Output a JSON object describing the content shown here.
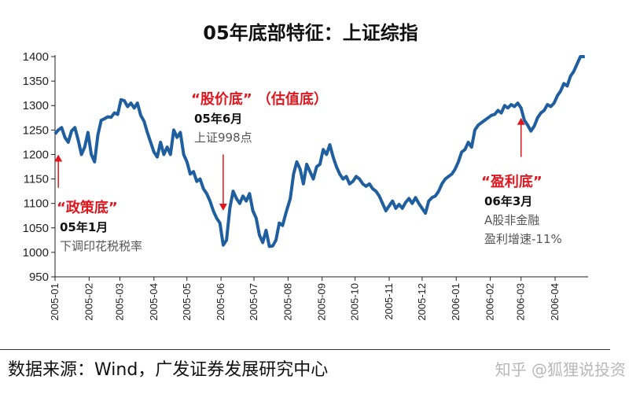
{
  "chart_data": {
    "type": "line",
    "title": "05年底部特征：上证综指",
    "ylim": [
      950,
      1400
    ],
    "yticks": [
      950,
      1000,
      1050,
      1100,
      1150,
      1200,
      1250,
      1300,
      1350,
      1400
    ],
    "xlim": [
      "2005-01-01",
      "2006-05-01"
    ],
    "xticks": [
      "2005-01",
      "2005-02",
      "2005-03",
      "2005-04",
      "2005-05",
      "2005-06",
      "2005-07",
      "2005-08",
      "2005-09",
      "2005-10",
      "2005-11",
      "2005-12",
      "2006-01",
      "2006-02",
      "2006-03",
      "2006-04"
    ],
    "grid": false,
    "series": [
      {
        "color": "#1f5f9f",
        "points": [
          [
            "2005-01-01",
            1242
          ],
          [
            "2005-01-04",
            1250
          ],
          [
            "2005-01-07",
            1255
          ],
          [
            "2005-01-10",
            1235
          ],
          [
            "2005-01-13",
            1225
          ],
          [
            "2005-01-16",
            1248
          ],
          [
            "2005-01-19",
            1255
          ],
          [
            "2005-01-22",
            1230
          ],
          [
            "2005-01-25",
            1200
          ],
          [
            "2005-01-28",
            1215
          ],
          [
            "2005-01-31",
            1245
          ],
          [
            "2005-02-03",
            1200
          ],
          [
            "2005-02-06",
            1185
          ],
          [
            "2005-02-09",
            1240
          ],
          [
            "2005-02-12",
            1270
          ],
          [
            "2005-02-15",
            1273
          ],
          [
            "2005-02-18",
            1277
          ],
          [
            "2005-02-21",
            1276
          ],
          [
            "2005-02-24",
            1285
          ],
          [
            "2005-02-27",
            1282
          ],
          [
            "2005-03-02",
            1312
          ],
          [
            "2005-03-05",
            1310
          ],
          [
            "2005-03-08",
            1298
          ],
          [
            "2005-03-11",
            1305
          ],
          [
            "2005-03-14",
            1295
          ],
          [
            "2005-03-17",
            1305
          ],
          [
            "2005-03-20",
            1280
          ],
          [
            "2005-03-23",
            1268
          ],
          [
            "2005-03-26",
            1245
          ],
          [
            "2005-03-29",
            1225
          ],
          [
            "2005-04-01",
            1205
          ],
          [
            "2005-04-04",
            1195
          ],
          [
            "2005-04-07",
            1225
          ],
          [
            "2005-04-10",
            1200
          ],
          [
            "2005-04-13",
            1215
          ],
          [
            "2005-04-16",
            1200
          ],
          [
            "2005-04-19",
            1250
          ],
          [
            "2005-04-22",
            1235
          ],
          [
            "2005-04-25",
            1245
          ],
          [
            "2005-04-28",
            1200
          ],
          [
            "2005-05-01",
            1185
          ],
          [
            "2005-05-04",
            1160
          ],
          [
            "2005-05-07",
            1165
          ],
          [
            "2005-05-10",
            1145
          ],
          [
            "2005-05-13",
            1150
          ],
          [
            "2005-05-16",
            1130
          ],
          [
            "2005-05-19",
            1120
          ],
          [
            "2005-05-22",
            1105
          ],
          [
            "2005-05-25",
            1085
          ],
          [
            "2005-05-28",
            1070
          ],
          [
            "2005-05-31",
            1060
          ],
          [
            "2005-06-03",
            1015
          ],
          [
            "2005-06-06",
            1025
          ],
          [
            "2005-06-09",
            1090
          ],
          [
            "2005-06-12",
            1125
          ],
          [
            "2005-06-15",
            1110
          ],
          [
            "2005-06-18",
            1100
          ],
          [
            "2005-06-21",
            1115
          ],
          [
            "2005-06-24",
            1105
          ],
          [
            "2005-06-27",
            1120
          ],
          [
            "2005-06-30",
            1085
          ],
          [
            "2005-07-03",
            1070
          ],
          [
            "2005-07-06",
            1035
          ],
          [
            "2005-07-09",
            1020
          ],
          [
            "2005-07-12",
            1045
          ],
          [
            "2005-07-15",
            1012
          ],
          [
            "2005-07-18",
            1013
          ],
          [
            "2005-07-21",
            1025
          ],
          [
            "2005-07-24",
            1060
          ],
          [
            "2005-07-27",
            1055
          ],
          [
            "2005-07-30",
            1080
          ],
          [
            "2005-08-03",
            1110
          ],
          [
            "2005-08-06",
            1160
          ],
          [
            "2005-08-09",
            1185
          ],
          [
            "2005-08-12",
            1170
          ],
          [
            "2005-08-15",
            1140
          ],
          [
            "2005-08-18",
            1180
          ],
          [
            "2005-08-21",
            1165
          ],
          [
            "2005-08-24",
            1150
          ],
          [
            "2005-08-27",
            1175
          ],
          [
            "2005-08-30",
            1180
          ],
          [
            "2005-09-02",
            1210
          ],
          [
            "2005-09-05",
            1200
          ],
          [
            "2005-09-08",
            1220
          ],
          [
            "2005-09-11",
            1195
          ],
          [
            "2005-09-14",
            1175
          ],
          [
            "2005-09-17",
            1160
          ],
          [
            "2005-09-20",
            1150
          ],
          [
            "2005-09-23",
            1155
          ],
          [
            "2005-09-26",
            1140
          ],
          [
            "2005-09-29",
            1145
          ],
          [
            "2005-10-02",
            1155
          ],
          [
            "2005-10-05",
            1150
          ],
          [
            "2005-10-08",
            1140
          ],
          [
            "2005-10-11",
            1135
          ],
          [
            "2005-10-14",
            1140
          ],
          [
            "2005-10-17",
            1130
          ],
          [
            "2005-10-20",
            1125
          ],
          [
            "2005-10-23",
            1115
          ],
          [
            "2005-10-26",
            1100
          ],
          [
            "2005-10-29",
            1085
          ],
          [
            "2005-11-01",
            1095
          ],
          [
            "2005-11-04",
            1105
          ],
          [
            "2005-11-07",
            1090
          ],
          [
            "2005-11-10",
            1098
          ],
          [
            "2005-11-13",
            1090
          ],
          [
            "2005-11-16",
            1102
          ],
          [
            "2005-11-19",
            1110
          ],
          [
            "2005-11-22",
            1100
          ],
          [
            "2005-11-25",
            1112
          ],
          [
            "2005-11-28",
            1100
          ],
          [
            "2005-12-01",
            1090
          ],
          [
            "2005-12-04",
            1080
          ],
          [
            "2005-12-07",
            1105
          ],
          [
            "2005-12-10",
            1112
          ],
          [
            "2005-12-13",
            1115
          ],
          [
            "2005-12-16",
            1125
          ],
          [
            "2005-12-19",
            1140
          ],
          [
            "2005-12-22",
            1150
          ],
          [
            "2005-12-25",
            1155
          ],
          [
            "2005-12-28",
            1160
          ],
          [
            "2005-12-31",
            1170
          ],
          [
            "2006-01-03",
            1185
          ],
          [
            "2006-01-06",
            1205
          ],
          [
            "2006-01-09",
            1210
          ],
          [
            "2006-01-12",
            1225
          ],
          [
            "2006-01-15",
            1215
          ],
          [
            "2006-01-18",
            1250
          ],
          [
            "2006-01-21",
            1260
          ],
          [
            "2006-01-24",
            1265
          ],
          [
            "2006-01-27",
            1270
          ],
          [
            "2006-01-30",
            1275
          ],
          [
            "2006-02-02",
            1280
          ],
          [
            "2006-02-05",
            1282
          ],
          [
            "2006-02-08",
            1290
          ],
          [
            "2006-02-11",
            1285
          ],
          [
            "2006-02-14",
            1300
          ],
          [
            "2006-02-17",
            1295
          ],
          [
            "2006-02-20",
            1302
          ],
          [
            "2006-02-23",
            1298
          ],
          [
            "2006-02-26",
            1305
          ],
          [
            "2006-03-01",
            1295
          ],
          [
            "2006-03-04",
            1270
          ],
          [
            "2006-03-07",
            1260
          ],
          [
            "2006-03-10",
            1248
          ],
          [
            "2006-03-13",
            1258
          ],
          [
            "2006-03-16",
            1275
          ],
          [
            "2006-03-19",
            1285
          ],
          [
            "2006-03-22",
            1290
          ],
          [
            "2006-03-25",
            1302
          ],
          [
            "2006-03-28",
            1298
          ],
          [
            "2006-03-31",
            1305
          ],
          [
            "2006-04-03",
            1320
          ],
          [
            "2006-04-06",
            1330
          ],
          [
            "2006-04-09",
            1345
          ],
          [
            "2006-04-12",
            1340
          ],
          [
            "2006-04-15",
            1360
          ],
          [
            "2006-04-18",
            1370
          ],
          [
            "2006-04-21",
            1385
          ],
          [
            "2006-04-24",
            1400
          ],
          [
            "2006-04-28",
            1400
          ]
        ]
      }
    ],
    "annotations": [
      {
        "id": "policy",
        "red": "“政策底”",
        "bold": "05年1月",
        "gray": [
          "下调印花税税率"
        ],
        "arrow_date": "2005-01-04",
        "arrow_from": 1132,
        "arrow_to": 1200
      },
      {
        "id": "stock",
        "red": "“股价底”  （估值底）",
        "bold": "05年6月",
        "gray": [
          "上证998点"
        ],
        "arrow_date": "2005-06-03",
        "arrow_from": 1200,
        "arrow_to": 1085
      },
      {
        "id": "profit",
        "red": "“盈利底”",
        "bold": "06年3月",
        "gray": [
          "A股非金融",
          "盈利增速-11%"
        ],
        "arrow_date": "2006-03-01",
        "arrow_from": 1195,
        "arrow_to": 1275
      }
    ]
  },
  "footer": {
    "source": "数据来源：Wind，广发证券发展研究中心",
    "watermark": "知乎 @狐狸说投资"
  }
}
